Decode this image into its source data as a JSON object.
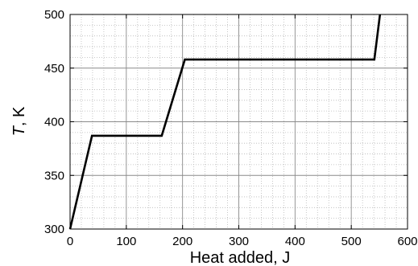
{
  "chart_data": {
    "type": "line",
    "title": "",
    "xlabel": "Heat added, J",
    "ylabel_italic": "T",
    "ylabel_rest": ", K",
    "xlim": [
      0,
      600
    ],
    "ylim": [
      300,
      500
    ],
    "x_major_ticks": [
      0,
      100,
      200,
      300,
      400,
      500,
      600
    ],
    "y_major_ticks": [
      300,
      350,
      400,
      450,
      500
    ],
    "x_minor_step": 20,
    "y_minor_step": 10,
    "grid": true,
    "grid_style": "dotted",
    "legend": "none",
    "series": [
      {
        "color": "#000000",
        "x": [
          0,
          39,
          163,
          204,
          541,
          551
        ],
        "y": [
          300,
          387,
          387,
          458,
          458,
          500
        ]
      }
    ]
  }
}
